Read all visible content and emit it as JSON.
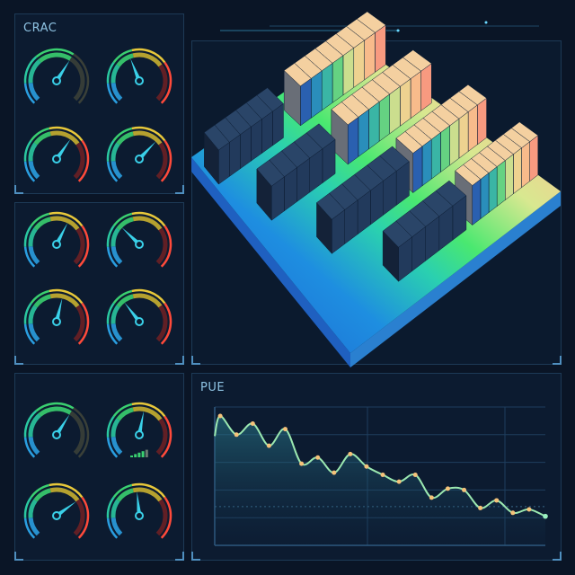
{
  "panels": {
    "crac": {
      "title": "CRAC"
    },
    "pue": {
      "title": "PUE"
    }
  },
  "colors": {
    "background": "#0a1526",
    "needle": "#3ad0e8",
    "green": "#3ad070",
    "yellow": "#e8c83a",
    "red": "#ff4a3a",
    "line": "#9be8b0",
    "marker": "#f5c27a"
  },
  "gauges": [
    {
      "group": "crac",
      "style": "green",
      "value": 0.62
    },
    {
      "group": "crac",
      "style": "tri",
      "value": 0.42
    },
    {
      "group": "crac",
      "style": "tri",
      "value": 0.63
    },
    {
      "group": "crac",
      "style": "tri",
      "value": 0.66
    },
    {
      "group": "middle",
      "style": "tri",
      "value": 0.6
    },
    {
      "group": "middle",
      "style": "tri",
      "value": 0.33
    },
    {
      "group": "middle",
      "style": "tri",
      "value": 0.55
    },
    {
      "group": "middle",
      "style": "tri",
      "value": 0.36
    },
    {
      "group": "bottom",
      "style": "green",
      "value": 0.62
    },
    {
      "group": "bottom",
      "style": "tri",
      "value": 0.54,
      "signal_bars": 5
    },
    {
      "group": "bottom",
      "style": "tri",
      "value": 0.7
    },
    {
      "group": "bottom",
      "style": "tri",
      "value": 0.48
    }
  ],
  "chart_data": {
    "type": "area",
    "title": "PUE",
    "xlabel": "",
    "ylabel": "",
    "ylim": [
      0,
      100
    ],
    "grid": true,
    "reference_line": 28,
    "start_value": 79,
    "values": [
      93.5,
      80,
      88,
      72,
      84,
      59,
      63.5,
      52.5,
      66,
      57,
      51,
      46,
      51,
      34.5,
      41,
      40,
      27,
      32.5,
      23.5,
      26,
      21
    ]
  }
}
